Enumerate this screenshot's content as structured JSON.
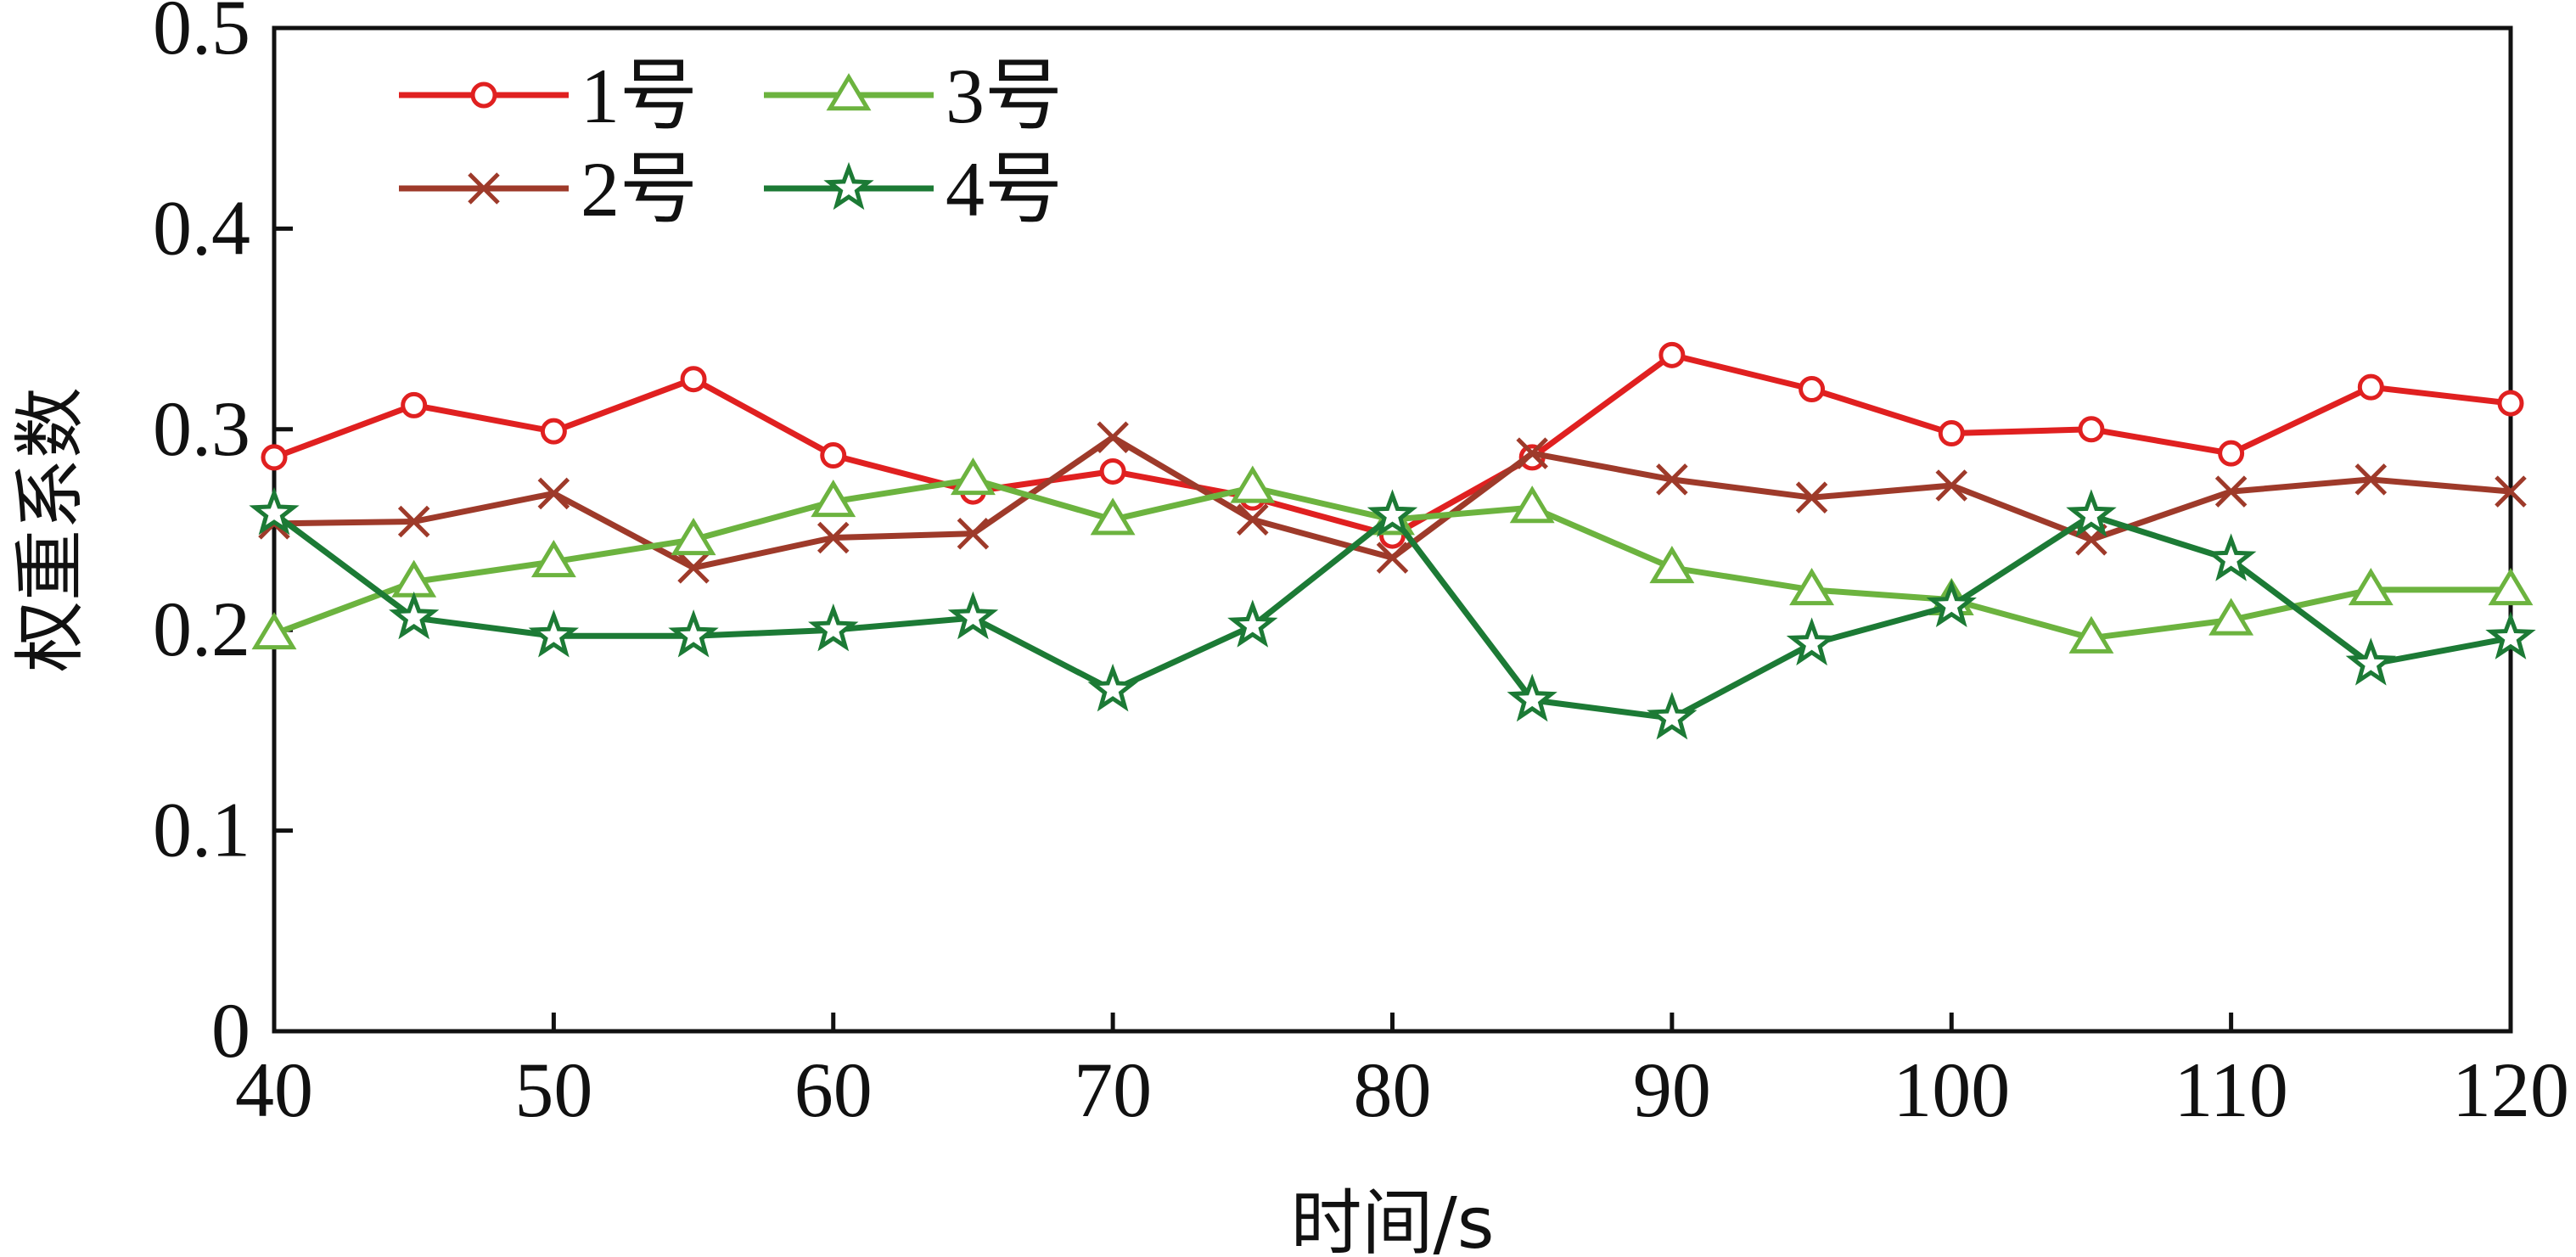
{
  "chart_data": {
    "type": "line",
    "xlabel": "时间/s",
    "ylabel": "权重系数",
    "xlim": [
      40,
      120
    ],
    "ylim": [
      0,
      0.5
    ],
    "xticks": [
      "40",
      "50",
      "60",
      "70",
      "80",
      "90",
      "100",
      "110",
      "120"
    ],
    "yticks": [
      "0",
      "0.1",
      "0.2",
      "0.3",
      "0.4",
      "0.5"
    ],
    "grid": false,
    "legend_position": "top-left",
    "x": [
      40,
      45,
      50,
      55,
      60,
      65,
      70,
      75,
      80,
      85,
      90,
      95,
      100,
      105,
      110,
      115,
      120
    ],
    "series": [
      {
        "name": "1号",
        "color": "#e02020",
        "marker": "circle",
        "values": [
          0.286,
          0.312,
          0.299,
          0.325,
          0.287,
          0.269,
          0.279,
          0.266,
          0.247,
          0.286,
          0.337,
          0.32,
          0.298,
          0.3,
          0.288,
          0.321,
          0.313
        ]
      },
      {
        "name": "2号",
        "color": "#9e3a2a",
        "marker": "x",
        "values": [
          0.253,
          0.254,
          0.268,
          0.231,
          0.246,
          0.248,
          0.296,
          0.255,
          0.236,
          0.288,
          0.275,
          0.266,
          0.272,
          0.245,
          0.269,
          0.275,
          0.269
        ]
      },
      {
        "name": "3号",
        "color": "#6cb33f",
        "marker": "triangle",
        "values": [
          0.198,
          0.224,
          0.234,
          0.245,
          0.264,
          0.275,
          0.255,
          0.271,
          0.255,
          0.261,
          0.231,
          0.22,
          0.215,
          0.196,
          0.205,
          0.22,
          0.22
        ]
      },
      {
        "name": "4号",
        "color": "#1c7a35",
        "marker": "star",
        "values": [
          0.258,
          0.206,
          0.197,
          0.197,
          0.2,
          0.206,
          0.17,
          0.202,
          0.257,
          0.165,
          0.156,
          0.193,
          0.212,
          0.257,
          0.235,
          0.183,
          0.196
        ]
      }
    ]
  }
}
